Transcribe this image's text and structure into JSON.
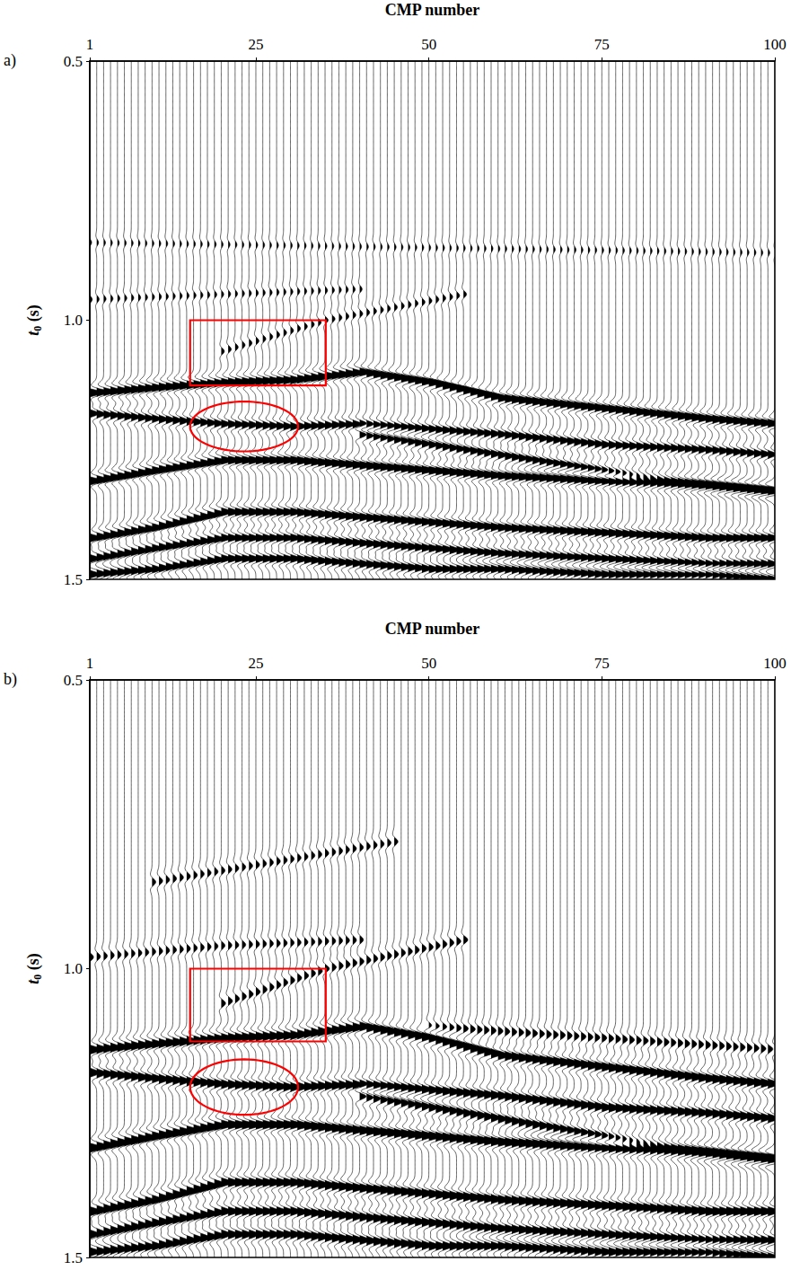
{
  "chart_data": [
    {
      "type": "wiggle",
      "label": "a)",
      "xlabel": "CMP number",
      "ylabel": "t0 (s)",
      "xlim": [
        1,
        100
      ],
      "xticks": [
        1,
        25,
        50,
        75,
        100
      ],
      "ylim": [
        0.5,
        1.5
      ],
      "yticks": [
        0.5,
        {
          "value": 1,
          "label": "1.0"
        },
        1.5
      ],
      "trace_cmps": [
        1,
        100
      ],
      "color": "#000000",
      "reflectors": [
        {
          "cmp": [
            1,
            10,
            20,
            30,
            40,
            50,
            60,
            75,
            90,
            100
          ],
          "t0": [
            1.14,
            1.13,
            1.12,
            1.115,
            1.1,
            1.12,
            1.15,
            1.17,
            1.19,
            1.2
          ],
          "amplitude": 1.0
        },
        {
          "cmp": [
            1,
            10,
            20,
            30,
            40,
            50,
            60,
            75,
            90,
            100
          ],
          "t0": [
            1.18,
            1.19,
            1.2,
            1.205,
            1.2,
            1.21,
            1.22,
            1.24,
            1.25,
            1.26
          ],
          "amplitude": 0.7
        },
        {
          "cmp": [
            1,
            10,
            20,
            30,
            40,
            50,
            60,
            75,
            90,
            100
          ],
          "t0": [
            1.31,
            1.29,
            1.27,
            1.27,
            1.28,
            1.29,
            1.3,
            1.31,
            1.32,
            1.33
          ],
          "amplitude": 1.0
        },
        {
          "cmp": [
            1,
            10,
            20,
            30,
            40,
            50,
            60,
            75,
            90,
            100
          ],
          "t0": [
            1.42,
            1.4,
            1.37,
            1.37,
            1.38,
            1.39,
            1.4,
            1.41,
            1.42,
            1.42
          ],
          "amplitude": 0.9
        },
        {
          "cmp": [
            1,
            10,
            20,
            30,
            40,
            50,
            60,
            75,
            90,
            100
          ],
          "t0": [
            1.46,
            1.44,
            1.42,
            1.42,
            1.43,
            1.44,
            1.45,
            1.46,
            1.47,
            1.47
          ],
          "amplitude": 0.8
        },
        {
          "cmp": [
            1,
            10,
            20,
            30,
            40,
            50,
            60,
            75,
            90,
            100
          ],
          "t0": [
            1.49,
            1.48,
            1.46,
            1.46,
            1.47,
            1.48,
            1.48,
            1.49,
            1.49,
            1.5
          ],
          "amplitude": 0.8
        },
        {
          "cmp": [
            20,
            35,
            55
          ],
          "t0": [
            1.06,
            1.0,
            0.95
          ],
          "amplitude": 0.25
        },
        {
          "cmp": [
            40,
            60,
            80,
            100
          ],
          "t0": [
            1.22,
            1.26,
            1.3,
            1.33
          ],
          "amplitude": 0.7
        },
        {
          "cmp": [
            1,
            20,
            40
          ],
          "t0": [
            0.96,
            0.95,
            0.94
          ],
          "amplitude": 0.2
        },
        {
          "cmp": [
            1,
            50,
            100
          ],
          "t0": [
            0.85,
            0.86,
            0.87
          ],
          "amplitude": 0.15
        }
      ],
      "annotations": [
        {
          "shape": "rectangle",
          "color": "#ff0000",
          "cmp": [
            15.5,
            35.1
          ],
          "t0": [
            1.0,
            1.126
          ]
        },
        {
          "shape": "ellipse",
          "color": "#ff0000",
          "cmp_center": 23.3,
          "t0_center": 1.205,
          "cmp_radius": 7.8,
          "t0_radius": 0.048
        }
      ]
    },
    {
      "type": "wiggle",
      "label": "b)",
      "xlabel": "CMP number",
      "ylabel": "t0 (s)",
      "xlim": [
        1,
        100
      ],
      "xticks": [
        1,
        25,
        50,
        75,
        100
      ],
      "ylim": [
        0.5,
        1.5
      ],
      "yticks": [
        0.5,
        {
          "value": 1,
          "label": "1.0"
        },
        1.5
      ],
      "trace_cmps": [
        1,
        100
      ],
      "color": "#000000",
      "reflectors": [
        {
          "cmp": [
            1,
            10,
            20,
            30,
            40,
            50,
            60,
            75,
            90,
            100
          ],
          "t0": [
            1.14,
            1.13,
            1.12,
            1.115,
            1.1,
            1.12,
            1.15,
            1.17,
            1.19,
            1.2
          ],
          "amplitude": 0.9
        },
        {
          "cmp": [
            1,
            10,
            20,
            30,
            40,
            50,
            60,
            75,
            90,
            100
          ],
          "t0": [
            1.18,
            1.19,
            1.2,
            1.205,
            1.2,
            1.21,
            1.22,
            1.24,
            1.25,
            1.26
          ],
          "amplitude": 0.8
        },
        {
          "cmp": [
            1,
            10,
            20,
            30,
            40,
            50,
            60,
            75,
            90,
            100
          ],
          "t0": [
            1.31,
            1.29,
            1.27,
            1.27,
            1.28,
            1.29,
            1.3,
            1.31,
            1.32,
            1.33
          ],
          "amplitude": 1.0
        },
        {
          "cmp": [
            1,
            10,
            20,
            30,
            40,
            50,
            60,
            75,
            90,
            100
          ],
          "t0": [
            1.42,
            1.4,
            1.37,
            1.37,
            1.38,
            1.39,
            1.4,
            1.41,
            1.42,
            1.42
          ],
          "amplitude": 0.9
        },
        {
          "cmp": [
            1,
            10,
            20,
            30,
            40,
            50,
            60,
            75,
            90,
            100
          ],
          "t0": [
            1.46,
            1.44,
            1.42,
            1.42,
            1.43,
            1.44,
            1.45,
            1.46,
            1.47,
            1.47
          ],
          "amplitude": 0.8
        },
        {
          "cmp": [
            1,
            10,
            20,
            30,
            40,
            50,
            60,
            75,
            90,
            100
          ],
          "t0": [
            1.49,
            1.48,
            1.46,
            1.46,
            1.47,
            1.48,
            1.48,
            1.49,
            1.49,
            1.5
          ],
          "amplitude": 0.8
        },
        {
          "cmp": [
            20,
            35,
            55
          ],
          "t0": [
            1.06,
            1.0,
            0.95
          ],
          "amplitude": 0.35
        },
        {
          "cmp": [
            40,
            60,
            80,
            100
          ],
          "t0": [
            1.22,
            1.26,
            1.3,
            1.33
          ],
          "amplitude": 0.7
        },
        {
          "cmp": [
            10,
            30,
            45
          ],
          "t0": [
            0.85,
            0.81,
            0.78
          ],
          "amplitude": 0.3
        },
        {
          "cmp": [
            1,
            20,
            40
          ],
          "t0": [
            0.98,
            0.96,
            0.95
          ],
          "amplitude": 0.3
        },
        {
          "cmp": [
            50,
            75,
            100
          ],
          "t0": [
            1.1,
            1.12,
            1.14
          ],
          "amplitude": 0.4
        }
      ],
      "annotations": [
        {
          "shape": "rectangle",
          "color": "#ff0000",
          "cmp": [
            15.5,
            35.1
          ],
          "t0": [
            1.0,
            1.126
          ]
        },
        {
          "shape": "ellipse",
          "color": "#ff0000",
          "cmp_center": 23.3,
          "t0_center": 1.205,
          "cmp_radius": 7.8,
          "t0_radius": 0.048
        }
      ]
    }
  ]
}
